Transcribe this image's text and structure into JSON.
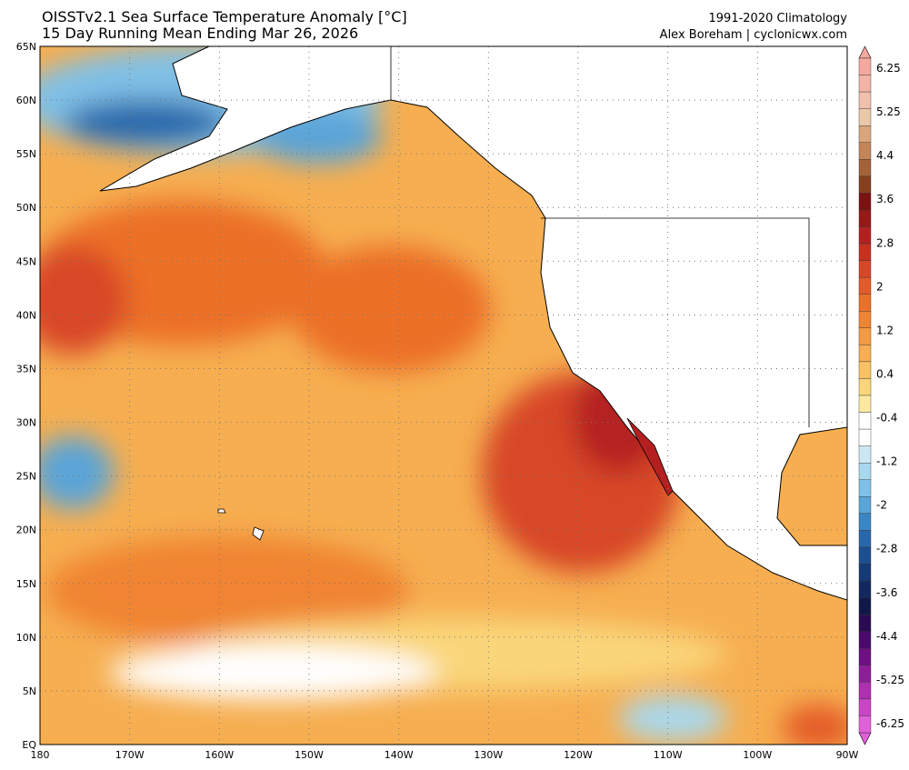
{
  "header": {
    "title": "OISSTv2.1 Sea Surface Temperature Anomaly [°C]",
    "subtitle": "15 Day Running Mean Ending Mar 26, 2026",
    "climatology": "1991-2020 Climatology",
    "credit": "Alex Boreham | cyclonicwx.com"
  },
  "map": {
    "lat_labels": [
      "65N",
      "60N",
      "55N",
      "50N",
      "45N",
      "40N",
      "35N",
      "30N",
      "25N",
      "20N",
      "15N",
      "10N",
      "5N",
      "EQ"
    ],
    "lon_labels": [
      "180",
      "170W",
      "160W",
      "150W",
      "140W",
      "130W",
      "120W",
      "110W",
      "100W",
      "90W"
    ]
  },
  "colorbar": {
    "labels": [
      6.25,
      5.25,
      4.4,
      3.6,
      2.8,
      2,
      1.2,
      0.4,
      -0.4,
      -1.2,
      -2,
      -2.8,
      -3.6,
      -4.4,
      -5.25,
      -6.25
    ],
    "colors": [
      "#f4a8a0",
      "#f2b4a6",
      "#efc1ad",
      "#e9c9a9",
      "#d9a57c",
      "#c4855a",
      "#a4623a",
      "#86401f",
      "#7d1010",
      "#981818",
      "#b42020",
      "#c83020",
      "#d84628",
      "#e45a28",
      "#ec7028",
      "#f08430",
      "#f49a40",
      "#f6ae50",
      "#f8c262",
      "#fad67a",
      "#fce8a0",
      "#ffffff",
      "#ffffff",
      "#cce8f4",
      "#a8d8ee",
      "#80c0e6",
      "#5aa4d8",
      "#3a86c4",
      "#2868aa",
      "#1c4e90",
      "#163a76",
      "#12285e",
      "#101848",
      "#2a0a50",
      "#4a0a6a",
      "#6e1082",
      "#8e1e98",
      "#b02eb0",
      "#cc44c6",
      "#e060d8"
    ]
  }
}
